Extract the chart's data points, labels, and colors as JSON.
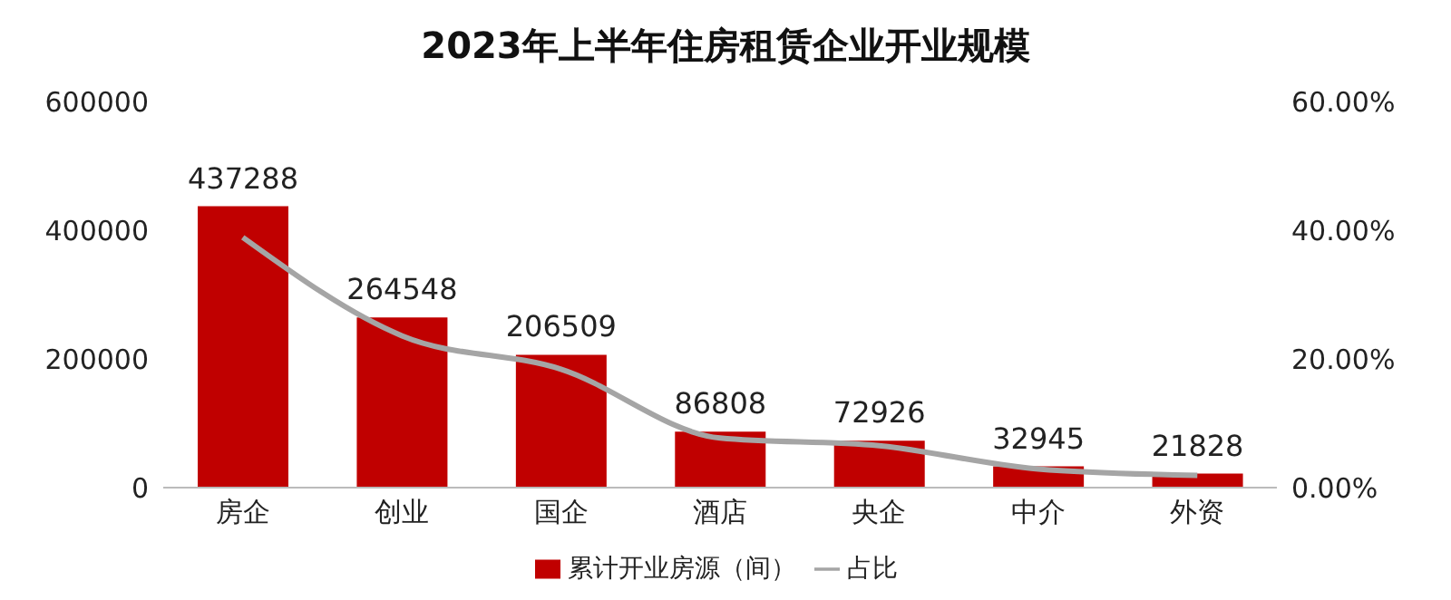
{
  "chart_data": {
    "type": "bar",
    "title": "2023年上半年住房租赁企业开业规模",
    "categories": [
      "房企",
      "创业",
      "国企",
      "酒店",
      "央企",
      "中介",
      "外资"
    ],
    "series": [
      {
        "name": "累计开业房源（间）",
        "color": "#c00000",
        "values": [
          437288,
          264548,
          206509,
          86808,
          72926,
          32945,
          21828
        ],
        "value_labels": [
          "437288",
          "264548",
          "206509",
          "86808",
          "72926",
          "32945",
          "21828"
        ]
      },
      {
        "name": "占比",
        "type": "line",
        "axis": "y2",
        "color": "#a5a5a5",
        "values": [
          38.9,
          23.6,
          18.4,
          7.7,
          6.5,
          2.9,
          1.9
        ]
      }
    ],
    "ylim": [
      0,
      600000
    ],
    "yticks": [
      0,
      200000,
      400000,
      600000
    ],
    "y2lim": [
      0,
      60
    ],
    "y2ticks": [
      {
        "value": 0,
        "label": "0.00%"
      },
      {
        "value": 20,
        "label": "20.00%"
      },
      {
        "value": 40,
        "label": "40.00%"
      },
      {
        "value": 60,
        "label": "60.00%"
      }
    ],
    "grid": false,
    "legend": "bottom",
    "marker": "none",
    "line_style": "solid"
  }
}
